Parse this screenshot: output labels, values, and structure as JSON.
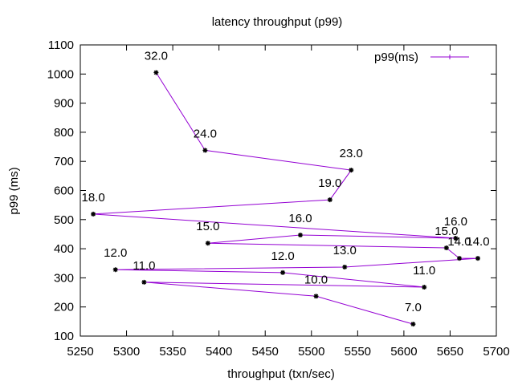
{
  "chart_data": {
    "type": "line",
    "title": "latency throughput (p99)",
    "xlabel": "throughput (txn/sec)",
    "ylabel": "p99 (ms)",
    "xlim": [
      5250,
      5700
    ],
    "ylim": [
      100,
      1100
    ],
    "x_ticks": [
      "5250",
      "5300",
      "5350",
      "5400",
      "5450",
      "5500",
      "5550",
      "5600",
      "5650",
      "5700"
    ],
    "y_ticks": [
      "100",
      "200",
      "300",
      "400",
      "500",
      "600",
      "700",
      "800",
      "900",
      "1000",
      "1100"
    ],
    "grid": false,
    "legend_position": "top-right",
    "series": [
      {
        "name": "p99(ms)",
        "color": "#9400d3",
        "marker_color": "#000000",
        "points": [
          {
            "x": 5332,
            "y": 1005,
            "label": "32.0"
          },
          {
            "x": 5385,
            "y": 738,
            "label": "24.0"
          },
          {
            "x": 5543,
            "y": 670,
            "label": "23.0"
          },
          {
            "x": 5520,
            "y": 568,
            "label": "19.0"
          },
          {
            "x": 5264,
            "y": 519,
            "label": "18.0"
          },
          {
            "x": 5656,
            "y": 436,
            "label": "16.0"
          },
          {
            "x": 5488,
            "y": 447,
            "label": "16.0"
          },
          {
            "x": 5388,
            "y": 419,
            "label": "15.0"
          },
          {
            "x": 5646,
            "y": 403,
            "label": "15.0"
          },
          {
            "x": 5660,
            "y": 367,
            "label": "14.0"
          },
          {
            "x": 5680,
            "y": 367,
            "label": "14.0"
          },
          {
            "x": 5536,
            "y": 337,
            "label": "13.0"
          },
          {
            "x": 5288,
            "y": 328,
            "label": "12.0"
          },
          {
            "x": 5469,
            "y": 318,
            "label": "12.0"
          },
          {
            "x": 5622,
            "y": 268,
            "label": "11.0"
          },
          {
            "x": 5319,
            "y": 285,
            "label": "11.0"
          },
          {
            "x": 5505,
            "y": 237,
            "label": "10.0"
          },
          {
            "x": 5610,
            "y": 141,
            "label": "7.0"
          }
        ]
      }
    ]
  }
}
